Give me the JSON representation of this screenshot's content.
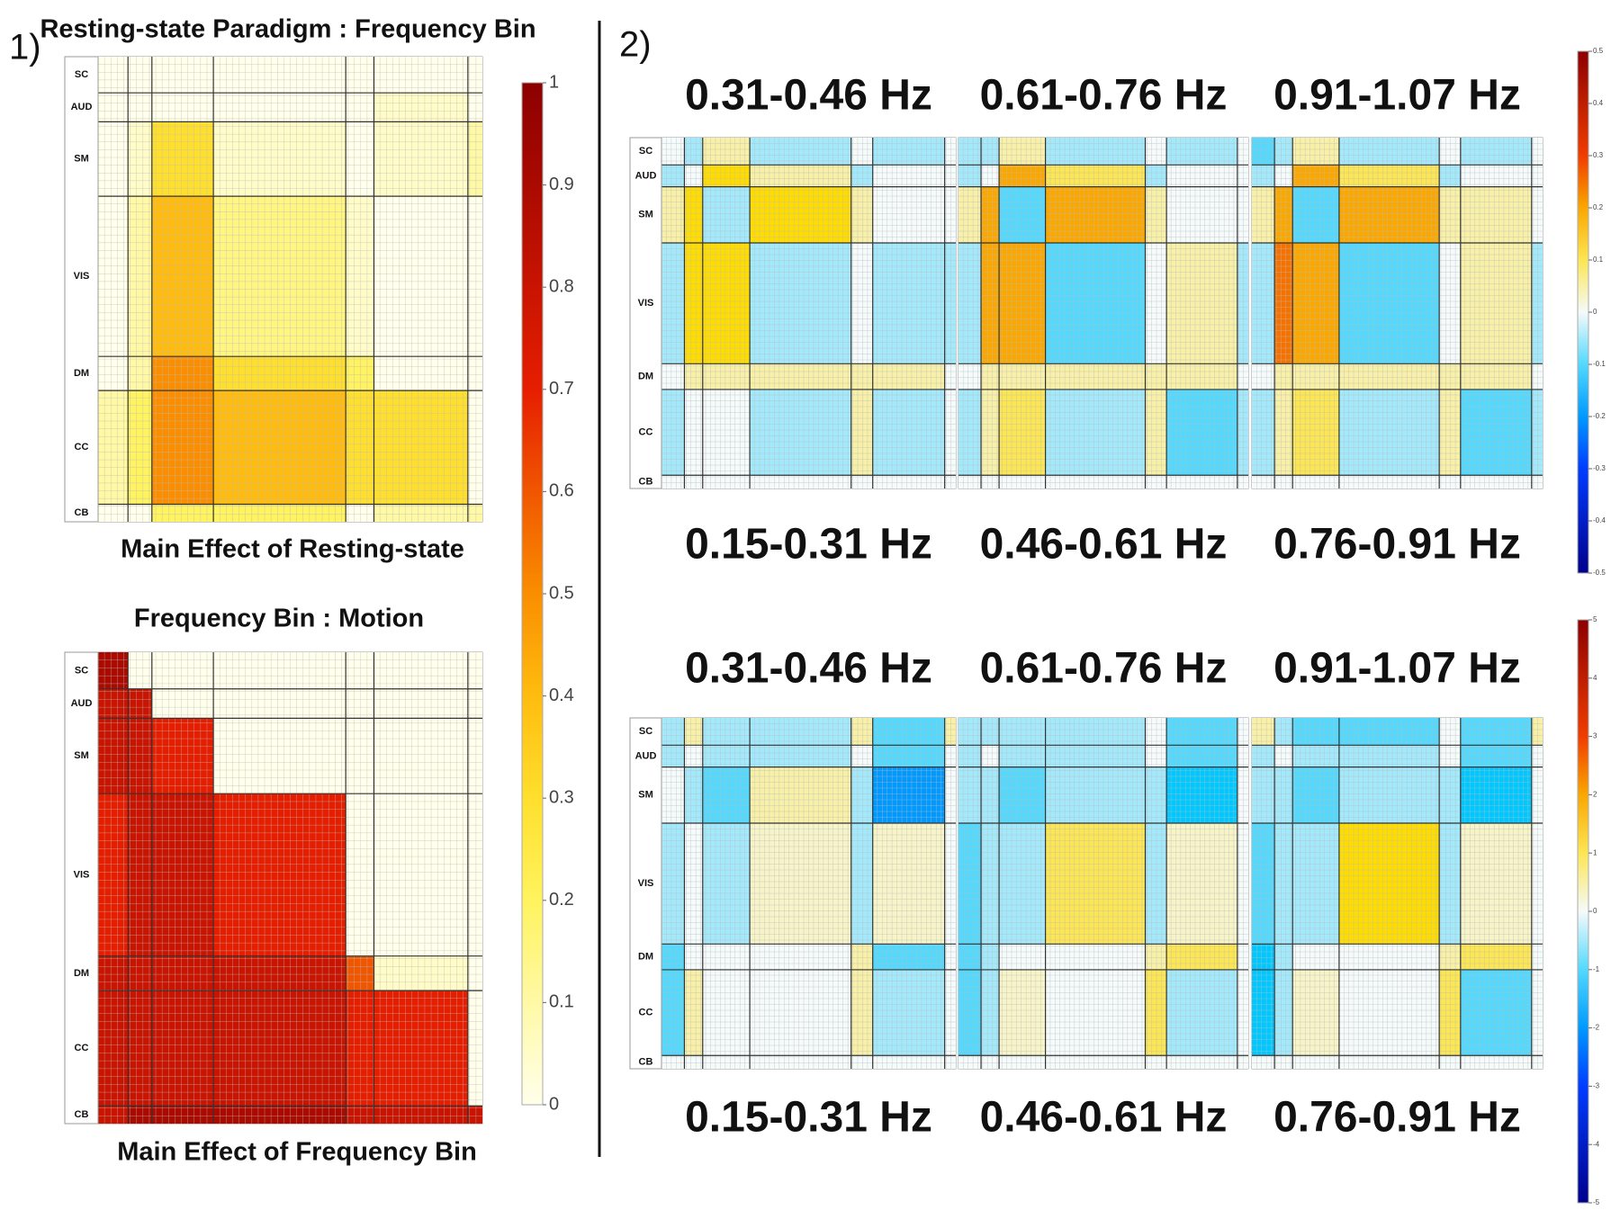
{
  "networks": [
    "SC",
    "AUD",
    "SM",
    "VIS",
    "DM",
    "CC",
    "CB"
  ],
  "panel1": {
    "label": "1)",
    "colormap": "hot",
    "colorbar": {
      "clim": [
        0,
        1
      ],
      "ticks": [
        0,
        0.1,
        0.2,
        0.3,
        0.4,
        0.5,
        0.6,
        0.7,
        0.8,
        0.9,
        1
      ]
    },
    "matrices": [
      {
        "title": "Resting-state Paradigm : Frequency Bin",
        "caption": "Main Effect of Resting-state",
        "values": [
          [
            0,
            0,
            0,
            0,
            0,
            0,
            0
          ],
          [
            0,
            0,
            0,
            0,
            0,
            0.05,
            0
          ],
          [
            0,
            0.05,
            0.3,
            0.05,
            0,
            0.05,
            0.1
          ],
          [
            0,
            0.1,
            0.4,
            0.15,
            0.05,
            0,
            0
          ],
          [
            0,
            0.1,
            0.5,
            0.3,
            0.2,
            0,
            0
          ],
          [
            0.1,
            0.2,
            0.5,
            0.4,
            0.3,
            0.3,
            0
          ],
          [
            0,
            0,
            0.2,
            0.2,
            0,
            0.1,
            0.1
          ]
        ]
      },
      {
        "title": "Frequency Bin : Motion",
        "caption": "Main Effect of Frequency Bin",
        "values": [
          [
            0.9,
            0,
            0,
            0,
            0,
            0,
            0
          ],
          [
            0.8,
            0.8,
            0,
            0,
            0,
            0,
            0
          ],
          [
            0.8,
            0.8,
            0.7,
            0,
            0,
            0,
            0
          ],
          [
            0.7,
            0.8,
            0.8,
            0.7,
            0,
            0,
            0
          ],
          [
            0.8,
            0.8,
            0.8,
            0.8,
            0.6,
            0.05,
            0
          ],
          [
            0.8,
            0.8,
            0.8,
            0.8,
            0.7,
            0.7,
            0
          ],
          [
            0.8,
            0.9,
            0.9,
            0.9,
            0.8,
            0.8,
            0.8
          ]
        ]
      }
    ]
  },
  "panel2": {
    "label": "2)",
    "colormap": "jet",
    "groups": [
      {
        "colorbar": {
          "clim": [
            -0.5,
            0.5
          ],
          "ticks": [
            -0.5,
            -0.4,
            -0.3,
            -0.2,
            -0.1,
            0,
            0.1,
            0.2,
            0.3,
            0.4,
            0.5
          ]
        },
        "matrices": [
          {
            "upper_label": "0.31-0.46 Hz",
            "lower_label": "0.15-0.31 Hz",
            "values": [
              [
                0,
                -0.05,
                0.05,
                -0.05,
                0,
                -0.05,
                0
              ],
              [
                -0.05,
                0,
                0.15,
                0.05,
                -0.05,
                0,
                0
              ],
              [
                0.05,
                0.15,
                -0.05,
                0.15,
                0.05,
                0,
                0
              ],
              [
                -0.05,
                0.15,
                0.15,
                -0.05,
                0,
                -0.05,
                -0.05
              ],
              [
                0,
                0.05,
                0.05,
                0.05,
                0.05,
                0.05,
                0
              ],
              [
                -0.05,
                0,
                0,
                -0.05,
                0.05,
                -0.05,
                0
              ],
              [
                0,
                0,
                0,
                0,
                0,
                0,
                0
              ]
            ]
          },
          {
            "upper_label": "0.61-0.76 Hz",
            "lower_label": "0.46-0.61 Hz",
            "values": [
              [
                -0.05,
                -0.05,
                0.05,
                -0.05,
                0,
                -0.05,
                0
              ],
              [
                -0.05,
                0,
                0.2,
                0.1,
                -0.05,
                0,
                0
              ],
              [
                0.05,
                0.2,
                -0.1,
                0.2,
                0.05,
                0,
                0
              ],
              [
                -0.05,
                0.2,
                0.2,
                -0.1,
                0,
                0.05,
                -0.05
              ],
              [
                0,
                0.05,
                0.05,
                0.05,
                0.05,
                0.05,
                0
              ],
              [
                -0.05,
                0.05,
                0.1,
                -0.05,
                0.05,
                -0.1,
                -0.05
              ],
              [
                0,
                0,
                0,
                0,
                0,
                0,
                0
              ]
            ]
          },
          {
            "upper_label": "0.91-1.07 Hz",
            "lower_label": "0.76-0.91 Hz",
            "values": [
              [
                -0.1,
                -0.05,
                0.05,
                -0.05,
                0,
                -0.05,
                0
              ],
              [
                -0.05,
                0,
                0.2,
                0.1,
                -0.05,
                0,
                0
              ],
              [
                0.05,
                0.2,
                -0.1,
                0.2,
                0.05,
                0.05,
                0
              ],
              [
                -0.05,
                0.25,
                0.2,
                -0.1,
                0,
                0.05,
                -0.05
              ],
              [
                0,
                0.05,
                0.05,
                0.05,
                0.05,
                0.05,
                0
              ],
              [
                -0.05,
                0.05,
                0.1,
                -0.05,
                0.05,
                -0.1,
                -0.05
              ],
              [
                0,
                0,
                0,
                0,
                0,
                0,
                0
              ]
            ]
          }
        ]
      },
      {
        "colorbar": {
          "clim": [
            -5,
            5
          ],
          "ticks": [
            -5,
            -4,
            -3,
            -2,
            -1,
            0,
            1,
            2,
            3,
            4,
            5
          ]
        },
        "matrices": [
          {
            "upper_label": "0.31-0.46 Hz",
            "lower_label": "0.15-0.31 Hz",
            "values": [
              [
                -0.5,
                0.5,
                -0.5,
                -0.5,
                0.5,
                -1,
                0.5
              ],
              [
                -0.5,
                0,
                -0.5,
                -0.5,
                0,
                -1,
                0
              ],
              [
                0,
                -0.5,
                -1,
                0.5,
                -0.5,
                -2,
                0
              ],
              [
                -0.5,
                0,
                -0.5,
                0.3,
                -0.5,
                0.3,
                0
              ],
              [
                -1,
                0,
                0,
                0,
                0.5,
                -1,
                0
              ],
              [
                -1,
                0.5,
                0,
                0,
                0.5,
                -0.5,
                0
              ],
              [
                0,
                0,
                0,
                0,
                0,
                0,
                0
              ]
            ]
          },
          {
            "upper_label": "0.61-0.76 Hz",
            "lower_label": "0.46-0.61 Hz",
            "values": [
              [
                -0.5,
                -0.5,
                -0.5,
                -0.5,
                0,
                -1,
                0
              ],
              [
                -0.5,
                0,
                -0.5,
                -0.5,
                0,
                -1,
                0
              ],
              [
                -0.5,
                -0.5,
                -1,
                -0.5,
                -0.5,
                -1.5,
                0
              ],
              [
                -1,
                -0.5,
                -0.5,
                1,
                -0.5,
                0.3,
                0
              ],
              [
                -1,
                -0.5,
                0,
                0,
                0.5,
                1,
                0
              ],
              [
                -1,
                -0.5,
                0.3,
                0,
                1,
                -0.5,
                0
              ],
              [
                0,
                0,
                0,
                0,
                0,
                0,
                0
              ]
            ]
          },
          {
            "upper_label": "0.91-1.07 Hz",
            "lower_label": "0.76-0.91 Hz",
            "values": [
              [
                0.5,
                -0.5,
                -1,
                -1,
                0,
                -1,
                0.5
              ],
              [
                -0.5,
                0,
                -0.5,
                -0.5,
                0,
                -1,
                0
              ],
              [
                -0.5,
                -0.5,
                -1,
                -0.5,
                -0.5,
                -1.5,
                0
              ],
              [
                -1,
                -0.5,
                -0.5,
                1.5,
                -0.5,
                0.3,
                0
              ],
              [
                -1.5,
                -0.5,
                0,
                0,
                0.5,
                1,
                0
              ],
              [
                -1.5,
                -0.5,
                0.3,
                0,
                1,
                -1,
                0
              ],
              [
                0,
                0,
                0,
                0,
                0,
                0,
                0
              ]
            ]
          }
        ]
      }
    ]
  }
}
